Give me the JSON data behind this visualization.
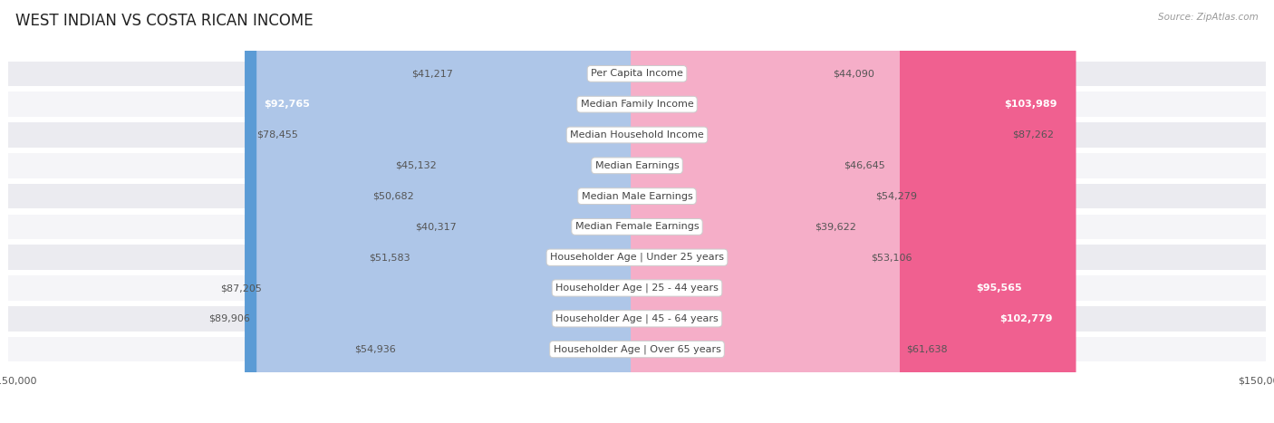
{
  "title": "WEST INDIAN VS COSTA RICAN INCOME",
  "source": "Source: ZipAtlas.com",
  "categories": [
    "Per Capita Income",
    "Median Family Income",
    "Median Household Income",
    "Median Earnings",
    "Median Male Earnings",
    "Median Female Earnings",
    "Householder Age | Under 25 years",
    "Householder Age | 25 - 44 years",
    "Householder Age | 45 - 64 years",
    "Householder Age | Over 65 years"
  ],
  "west_indian": [
    41217,
    92765,
    78455,
    45132,
    50682,
    40317,
    51583,
    87205,
    89906,
    54936
  ],
  "costa_rican": [
    44090,
    103989,
    87262,
    46645,
    54279,
    39622,
    53106,
    95565,
    102779,
    61638
  ],
  "west_indian_labels": [
    "$41,217",
    "$92,765",
    "$78,455",
    "$45,132",
    "$50,682",
    "$40,317",
    "$51,583",
    "$87,205",
    "$89,906",
    "$54,936"
  ],
  "costa_rican_labels": [
    "$44,090",
    "$103,989",
    "$87,262",
    "$46,645",
    "$54,279",
    "$39,622",
    "$53,106",
    "$95,565",
    "$102,779",
    "$61,638"
  ],
  "west_indian_high": [
    false,
    true,
    false,
    false,
    false,
    false,
    false,
    false,
    false,
    false
  ],
  "costa_rican_high": [
    false,
    true,
    false,
    false,
    false,
    false,
    false,
    true,
    true,
    false
  ],
  "max_val": 150000,
  "color_blue_light": "#aec6e8",
  "color_blue_dark": "#5b9bd5",
  "color_pink_light": "#f5aec8",
  "color_pink_dark": "#f06090",
  "background_row_odd": "#ebebf0",
  "background_row_even": "#f5f5f8",
  "background_fig": "#ffffff",
  "title_fontsize": 12,
  "label_fontsize": 8,
  "category_fontsize": 8,
  "axis_label_fontsize": 8
}
